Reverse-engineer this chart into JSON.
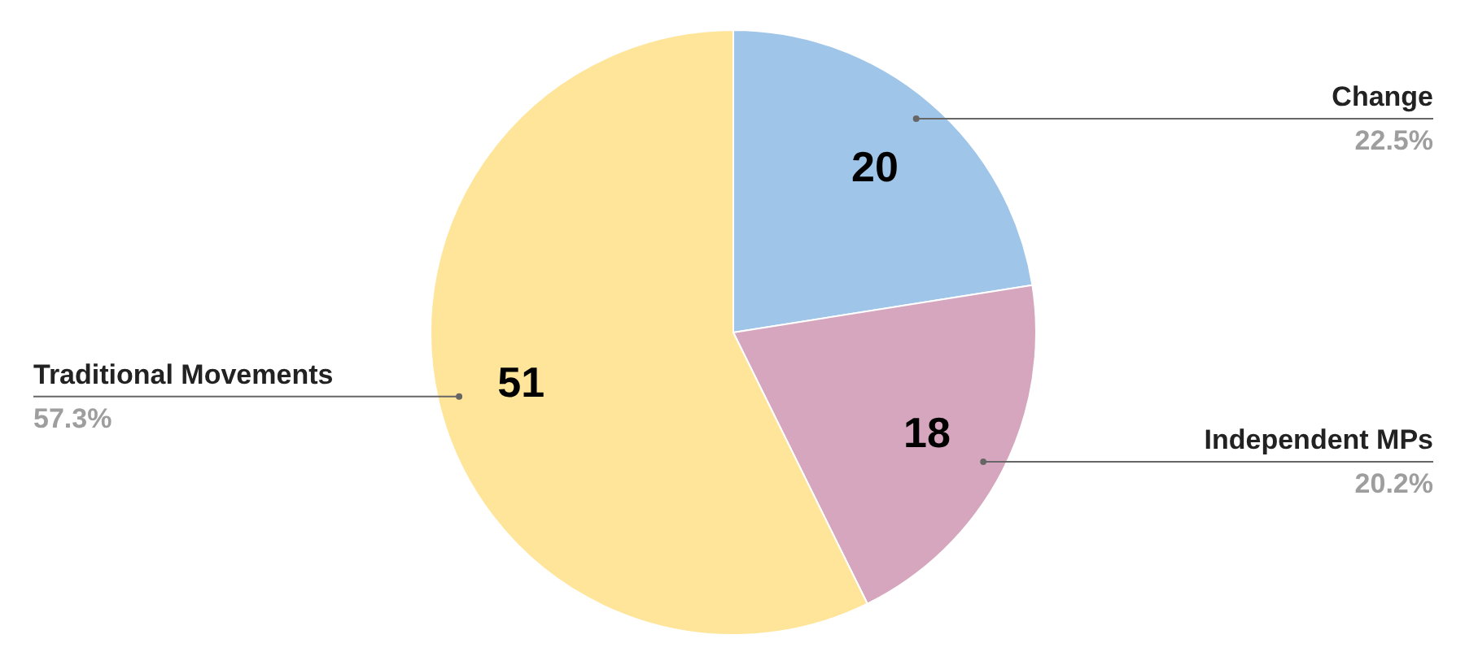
{
  "chart_data": {
    "type": "pie",
    "categories": [
      "Change",
      "Independent MPs",
      "Traditional Movements"
    ],
    "values": [
      22.5,
      20.2,
      57.3
    ],
    "colors": [
      "#9fc5e8",
      "#d5a6bd",
      "#ffe599"
    ],
    "value_labels": [
      "22.5%",
      "20.2%",
      "57.3%"
    ],
    "annotations": [
      {
        "text": "20",
        "x": "Change"
      },
      {
        "text": "18",
        "x": "Independent MPs"
      },
      {
        "text": "51",
        "x": "Traditional Movements"
      }
    ]
  }
}
